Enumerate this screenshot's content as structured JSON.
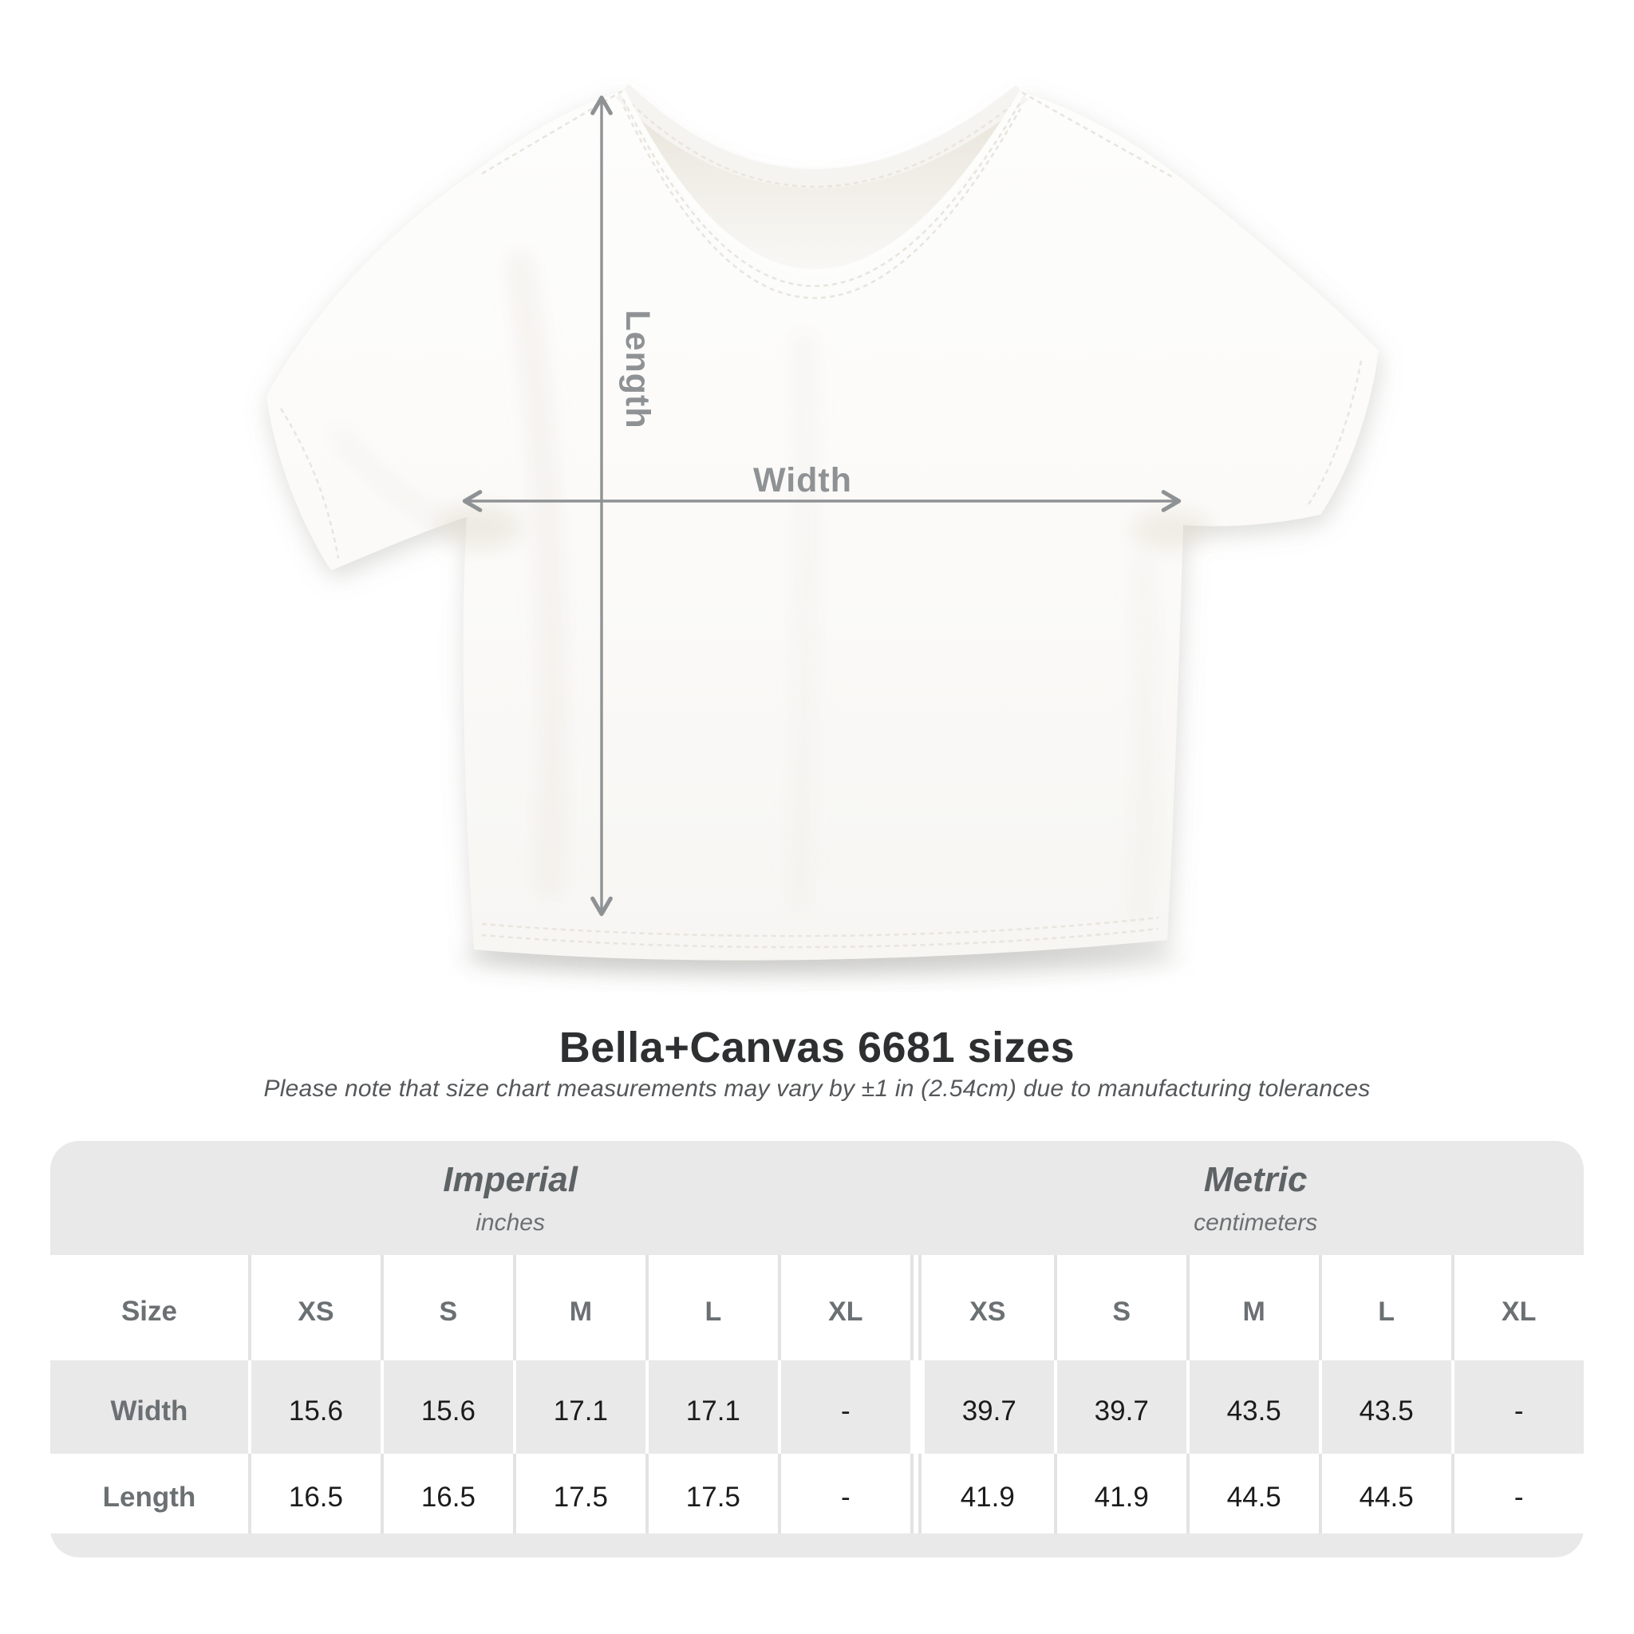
{
  "figure": {
    "length_label": "Length",
    "width_label": "Width"
  },
  "heading": {
    "title": "Bella+Canvas 6681 sizes",
    "subtitle": "Please note that size chart measurements may vary by ±1 in (2.54cm) due to manufacturing tolerances"
  },
  "table": {
    "sections": [
      {
        "label": "Imperial",
        "unit": "inches"
      },
      {
        "label": "Metric",
        "unit": "centimeters"
      }
    ],
    "size_header": "Size",
    "columns": [
      "XS",
      "S",
      "M",
      "L",
      "XL",
      "XS",
      "S",
      "M",
      "L",
      "XL"
    ],
    "rows": [
      {
        "label": "Width",
        "values": [
          "15.6",
          "15.6",
          "17.1",
          "17.1",
          "-",
          "39.7",
          "39.7",
          "43.5",
          "43.5",
          "-"
        ]
      },
      {
        "label": "Length",
        "values": [
          "16.5",
          "16.5",
          "17.5",
          "17.5",
          "-",
          "41.9",
          "41.9",
          "44.5",
          "44.5",
          "-"
        ]
      }
    ]
  },
  "colors": {
    "page_bg": "#ffffff",
    "band": "#e9e9e9",
    "row_stripe": "#e9e9e9",
    "label": "#6b7073",
    "value": "#1b1b1b",
    "title": "#2d2f30",
    "subtitle": "#55585a",
    "measure": "#8f9294",
    "divider_line": "#e3e3e3"
  },
  "chart_data": {
    "type": "table",
    "title": "Bella+Canvas 6681 sizes",
    "note": "Size chart measurements may vary by ±1 in (2.54cm) due to manufacturing tolerances",
    "sections": [
      {
        "name": "Imperial",
        "unit": "inches",
        "sizes": [
          "XS",
          "S",
          "M",
          "L",
          "XL"
        ]
      },
      {
        "name": "Metric",
        "unit": "centimeters",
        "sizes": [
          "XS",
          "S",
          "M",
          "L",
          "XL"
        ]
      }
    ],
    "rows": [
      {
        "dimension": "Width",
        "imperial": [
          15.6,
          15.6,
          17.1,
          17.1,
          null
        ],
        "metric": [
          39.7,
          39.7,
          43.5,
          43.5,
          null
        ]
      },
      {
        "dimension": "Length",
        "imperial": [
          16.5,
          16.5,
          17.5,
          17.5,
          null
        ],
        "metric": [
          41.9,
          41.9,
          44.5,
          44.5,
          null
        ]
      }
    ]
  }
}
